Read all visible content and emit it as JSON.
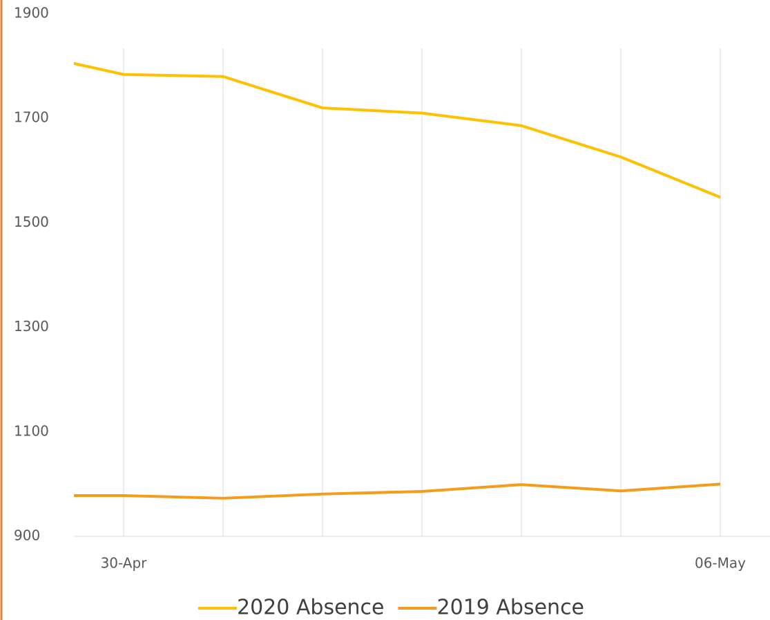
{
  "chart_data": {
    "type": "line",
    "categories": [
      null,
      "30-Apr",
      null,
      null,
      null,
      null,
      null,
      "06-May"
    ],
    "series": [
      {
        "name": "2020 Absence",
        "color": "#ffc000",
        "values": [
          1826,
          1784,
          1780,
          1720,
          1710,
          1686,
          1626,
          1549
        ]
      },
      {
        "name": "2019 Absence",
        "color": "#f59c1a",
        "values": [
          978,
          978,
          973,
          981,
          986,
          999,
          987,
          1000
        ]
      }
    ],
    "xlim": [
      0.5,
      7.5
    ],
    "ylim": [
      900,
      1900
    ],
    "yticks": [
      900,
      1100,
      1300,
      1500,
      1700,
      1900
    ],
    "grid": true,
    "legend": "bottom"
  }
}
